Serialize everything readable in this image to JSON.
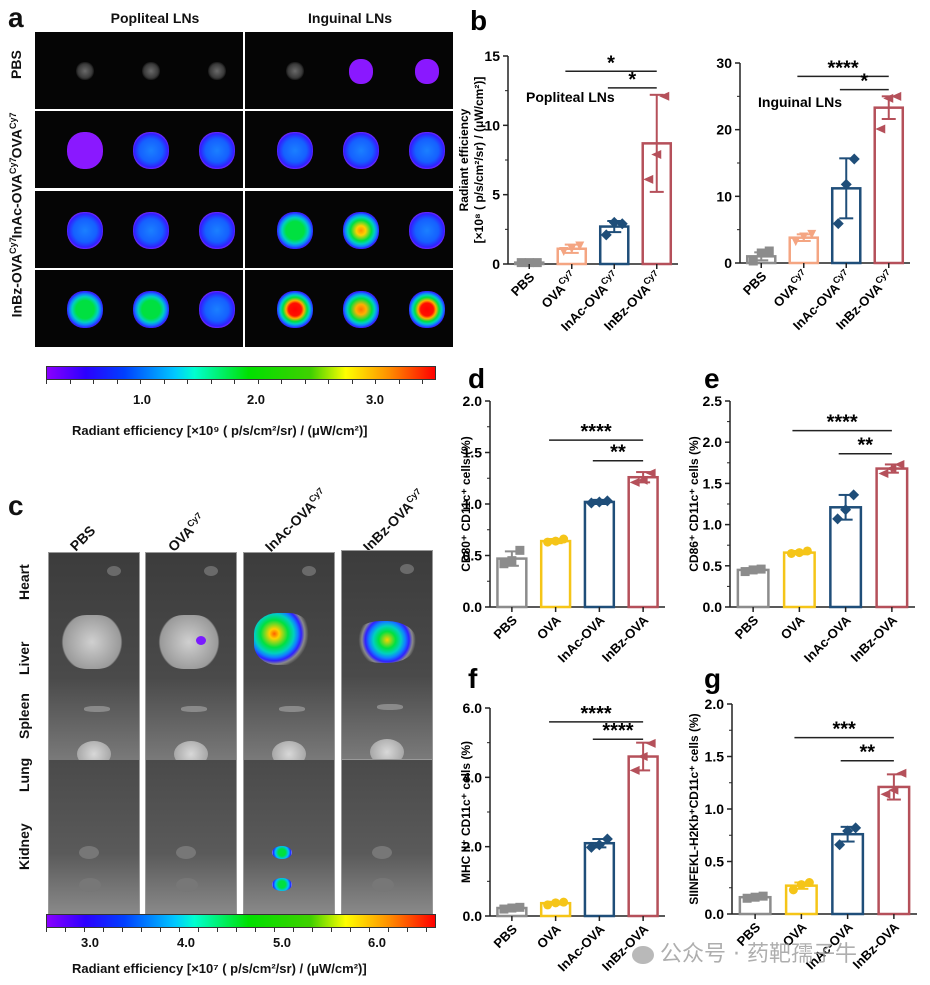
{
  "panel_a": {
    "letter": "a",
    "columns": [
      "Popliteal LNs",
      "Inguinal LNs"
    ],
    "rows": [
      "PBS",
      "OVA",
      "InAc-OVA",
      "InBz-OVA"
    ],
    "row_superscript": "Cy7",
    "colorbar": {
      "ticks": [
        "1.0",
        "2.0",
        "3.0"
      ],
      "label": "Radiant efficiency [×10⁹ ( p/s/cm²/sr) / (μW/cm²)]"
    },
    "spots": [
      [
        [
          "gray",
          "gray",
          "gray"
        ],
        [
          "gray",
          "purple",
          "purple"
        ]
      ],
      [
        [
          "purple",
          "blue",
          "blue"
        ],
        [
          "blue",
          "blue",
          "blue"
        ]
      ],
      [
        [
          "blue",
          "blue",
          "blue"
        ],
        [
          "green",
          "yellow",
          "blue"
        ]
      ],
      [
        [
          "green",
          "green",
          "blue"
        ],
        [
          "red",
          "orange",
          "red"
        ]
      ]
    ]
  },
  "panel_c": {
    "letter": "c",
    "columns": [
      "PBS",
      "OVA",
      "InAc-OVA",
      "InBz-OVA"
    ],
    "column_superscript": [
      "",
      "Cy7",
      "Cy7",
      "Cy7"
    ],
    "rows": [
      "Heart",
      "Liver",
      "Spleen",
      "Lung",
      "Kidney"
    ],
    "colorbar": {
      "ticks": [
        "3.0",
        "4.0",
        "5.0",
        "6.0"
      ],
      "label": "Radiant efficiency [×10⁷ ( p/s/cm²/sr) / (μW/cm²)]"
    }
  },
  "colors": {
    "PBS": "#8c8c8c",
    "OVA_b": "#f4a582",
    "OVA": "#f5c518",
    "InAc": "#1f4e79",
    "InBz": "#b5505a",
    "axis": "#222222"
  },
  "watermark": "公众号 · 药靶孺子牛",
  "chart_data": [
    {
      "id": "b1",
      "letter": "b",
      "type": "bar",
      "title": "Popliteal LNs",
      "categories": [
        "PBS",
        "OVA",
        "InAc-OVA",
        "InBz-OVA"
      ],
      "category_superscript": [
        "",
        "Cy7",
        "Cy7",
        "Cy7"
      ],
      "values": [
        0.1,
        1.1,
        2.7,
        8.7
      ],
      "errors": [
        0.05,
        0.3,
        0.4,
        3.5
      ],
      "points": [
        [
          0.1,
          0.1,
          0.1
        ],
        [
          0.9,
          1.1,
          1.3
        ],
        [
          2.1,
          3.0,
          2.9
        ],
        [
          6.1,
          7.9,
          12.1
        ]
      ],
      "markers": [
        "square",
        "triangle-down",
        "diamond",
        "triangle-left"
      ],
      "ylabel_line1": "Radiant efficiency",
      "ylabel_line2": "[×10⁸ ( p/s/cm²/sr) / (μW/cm²)]",
      "ylim": [
        0,
        15
      ],
      "yticks": [
        "0",
        "5",
        "10",
        "15"
      ],
      "ytick_values": [
        0,
        5,
        10,
        15
      ],
      "significance": [
        {
          "from": 1,
          "to": 3,
          "label": "*",
          "y": 13.9
        },
        {
          "from": 2,
          "to": 3,
          "label": "*",
          "y": 12.7
        }
      ]
    },
    {
      "id": "b2",
      "type": "bar",
      "title": "Inguinal LNs",
      "categories": [
        "PBS",
        "OVA",
        "InAc-OVA",
        "InBz-OVA"
      ],
      "category_superscript": [
        "",
        "Cy7",
        "Cy7",
        "Cy7"
      ],
      "values": [
        1.0,
        3.8,
        11.2,
        23.3
      ],
      "errors": [
        0.6,
        0.5,
        4.5,
        1.7
      ],
      "points": [
        [
          0.3,
          1.5,
          1.8
        ],
        [
          3.2,
          3.9,
          4.3
        ],
        [
          5.9,
          11.8,
          15.6
        ],
        [
          20.1,
          24.7,
          25.0
        ]
      ],
      "markers": [
        "square",
        "triangle-down",
        "diamond",
        "triangle-left"
      ],
      "ylim": [
        0,
        30
      ],
      "yticks": [
        "0",
        "10",
        "20",
        "30"
      ],
      "ytick_values": [
        0,
        10,
        20,
        30
      ],
      "significance": [
        {
          "from": 1,
          "to": 3,
          "label": "****",
          "y": 28
        },
        {
          "from": 2,
          "to": 3,
          "label": "*",
          "y": 26
        }
      ]
    },
    {
      "id": "d",
      "letter": "d",
      "type": "bar",
      "categories": [
        "PBS",
        "OVA",
        "InAc-OVA",
        "InBz-OVA"
      ],
      "values": [
        0.47,
        0.64,
        1.02,
        1.26
      ],
      "errors": [
        0.07,
        0.02,
        0.02,
        0.05
      ],
      "points": [
        [
          0.42,
          0.45,
          0.55
        ],
        [
          0.63,
          0.64,
          0.66
        ],
        [
          1.01,
          1.02,
          1.03
        ],
        [
          1.21,
          1.23,
          1.3
        ]
      ],
      "markers": [
        "square",
        "circle",
        "diamond",
        "triangle-left"
      ],
      "ylabel": "CD80⁺ CD11c⁺ cells (%)",
      "ylim": [
        0,
        2.0
      ],
      "yticks": [
        "0.0",
        "0.5",
        "1.0",
        "1.5",
        "2.0"
      ],
      "ytick_values": [
        0,
        0.5,
        1.0,
        1.5,
        2.0
      ],
      "significance": [
        {
          "from": 1,
          "to": 3,
          "label": "****",
          "y": 1.62
        },
        {
          "from": 2,
          "to": 3,
          "label": "**",
          "y": 1.42
        }
      ]
    },
    {
      "id": "e",
      "letter": "e",
      "type": "bar",
      "categories": [
        "PBS",
        "OVA",
        "InAc-OVA",
        "InBz-OVA"
      ],
      "values": [
        0.45,
        0.66,
        1.21,
        1.68
      ],
      "errors": [
        0.02,
        0.02,
        0.15,
        0.05
      ],
      "points": [
        [
          0.43,
          0.45,
          0.46
        ],
        [
          0.65,
          0.66,
          0.68
        ],
        [
          1.07,
          1.18,
          1.36
        ],
        [
          1.62,
          1.68,
          1.73
        ]
      ],
      "markers": [
        "square",
        "circle",
        "diamond",
        "triangle-left"
      ],
      "ylabel": "CD86⁺ CD11c⁺ cells (%)",
      "ylim": [
        0,
        2.5
      ],
      "yticks": [
        "0.0",
        "0.5",
        "1.0",
        "1.5",
        "2.0",
        "2.5"
      ],
      "ytick_values": [
        0,
        0.5,
        1.0,
        1.5,
        2.0,
        2.5
      ],
      "significance": [
        {
          "from": 1,
          "to": 3,
          "label": "****",
          "y": 2.14
        },
        {
          "from": 2,
          "to": 3,
          "label": "**",
          "y": 1.86
        }
      ]
    },
    {
      "id": "f",
      "letter": "f",
      "type": "bar",
      "categories": [
        "PBS",
        "OVA",
        "InAc-OVA",
        "InBz-OVA"
      ],
      "values": [
        0.23,
        0.37,
        2.1,
        4.6
      ],
      "errors": [
        0.03,
        0.04,
        0.12,
        0.4
      ],
      "points": [
        [
          0.2,
          0.23,
          0.25
        ],
        [
          0.32,
          0.38,
          0.4
        ],
        [
          1.98,
          2.05,
          2.22
        ],
        [
          4.2,
          4.6,
          4.98
        ]
      ],
      "markers": [
        "square",
        "circle",
        "diamond",
        "triangle-left"
      ],
      "ylabel": "MHC II⁺ CD11c⁺ cells (%)",
      "ylim": [
        0,
        6.0
      ],
      "yticks": [
        "0.0",
        "2.0",
        "4.0",
        "6.0"
      ],
      "ytick_values": [
        0,
        2.0,
        4.0,
        6.0
      ],
      "significance": [
        {
          "from": 1,
          "to": 3,
          "label": "****",
          "y": 5.6
        },
        {
          "from": 2,
          "to": 3,
          "label": "****",
          "y": 5.1
        }
      ]
    },
    {
      "id": "g",
      "letter": "g",
      "type": "bar",
      "categories": [
        "PBS",
        "OVA",
        "InAc-OVA",
        "InBz-OVA"
      ],
      "values": [
        0.16,
        0.27,
        0.76,
        1.21
      ],
      "errors": [
        0.01,
        0.03,
        0.07,
        0.12
      ],
      "points": [
        [
          0.15,
          0.16,
          0.17
        ],
        [
          0.23,
          0.28,
          0.3
        ],
        [
          0.66,
          0.79,
          0.82
        ],
        [
          1.14,
          1.18,
          1.34
        ]
      ],
      "markers": [
        "square",
        "circle",
        "diamond",
        "triangle-left"
      ],
      "ylabel": "SIINFEKL-H2Kb⁺CD11c⁺ cells (%)",
      "ylim": [
        0,
        2.0
      ],
      "yticks": [
        "0.0",
        "0.5",
        "1.0",
        "1.5",
        "2.0"
      ],
      "ytick_values": [
        0,
        0.5,
        1.0,
        1.5,
        2.0
      ],
      "significance": [
        {
          "from": 1,
          "to": 3,
          "label": "***",
          "y": 1.68
        },
        {
          "from": 2,
          "to": 3,
          "label": "**",
          "y": 1.46
        }
      ]
    }
  ]
}
